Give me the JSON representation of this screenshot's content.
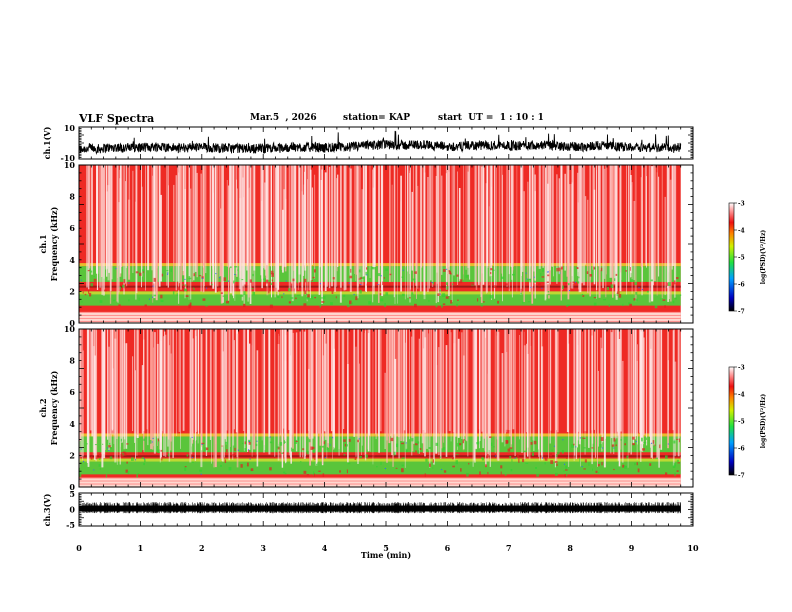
{
  "header": {
    "title": "VLF Spectra",
    "date": "Mar.5  , 2026",
    "station": "station= KAP",
    "start": "start  UT =  1 : 10 : 1"
  },
  "colors": {
    "background": "#ffffff",
    "spec_high": "#ee2a24",
    "spec_mid": "#40e040",
    "spec_low": "#0000c0",
    "axis": "#000000"
  },
  "chart_data": [
    {
      "type": "line",
      "name": "ch1-waveform",
      "ylabel": "ch.1(V)",
      "yticks": [
        "10",
        "-10"
      ],
      "ylim": [
        -10,
        10
      ],
      "xlim": [
        0,
        10
      ],
      "description_level": "noise around -4 V with amplitude ~5 V"
    },
    {
      "type": "heatmap",
      "name": "ch1-spectrogram",
      "ylabel": "ch.1\nFrequency  (kHz)",
      "ylabel_line1": "ch.1",
      "ylabel_line2": "Frequency  (kHz)",
      "yticks": [
        "0",
        "2",
        "4",
        "6",
        "8",
        "10"
      ],
      "ylim": [
        0,
        10
      ],
      "xlim": [
        0,
        9.8
      ],
      "colorbar": {
        "label": "log(PSD)(V²/Hz)",
        "ticks": [
          "-3",
          "-4",
          "-5",
          "-6",
          "-7"
        ],
        "range": [
          -7,
          -3
        ]
      },
      "bands_khz": {
        "green_upper": [
          2.6,
          3.6
        ],
        "green_lower": [
          1.1,
          2.0
        ],
        "line": 2.3,
        "white_base": [
          0.0,
          0.7
        ]
      }
    },
    {
      "type": "heatmap",
      "name": "ch2-spectrogram",
      "ylabel_line1": "ch.2",
      "ylabel_line2": "Frequency  (kHz)",
      "yticks": [
        "0",
        "2",
        "4",
        "6",
        "8",
        "10"
      ],
      "ylim": [
        0,
        10
      ],
      "xlim": [
        0,
        9.8
      ],
      "colorbar": {
        "label": "log(PSD)(V²/Hz)",
        "ticks": [
          "-3",
          "-4",
          "-5",
          "-6",
          "-7"
        ],
        "range": [
          -7,
          -3
        ]
      },
      "bands_khz": {
        "green_upper": [
          2.2,
          3.2
        ],
        "green_lower": [
          0.8,
          1.8
        ],
        "line": 1.95,
        "white_base": [
          0.0,
          0.6
        ]
      }
    },
    {
      "type": "line",
      "name": "ch3-waveform",
      "ylabel": "ch.3(V)",
      "yticks": [
        "5",
        "0",
        "-5"
      ],
      "ylim": [
        -5,
        5
      ],
      "xlim": [
        0,
        10
      ],
      "level": 0.3
    }
  ],
  "xaxis": {
    "label": "Time  (min)",
    "ticks": [
      "0",
      "1",
      "2",
      "3",
      "4",
      "5",
      "6",
      "7",
      "8",
      "9",
      "10"
    ]
  }
}
